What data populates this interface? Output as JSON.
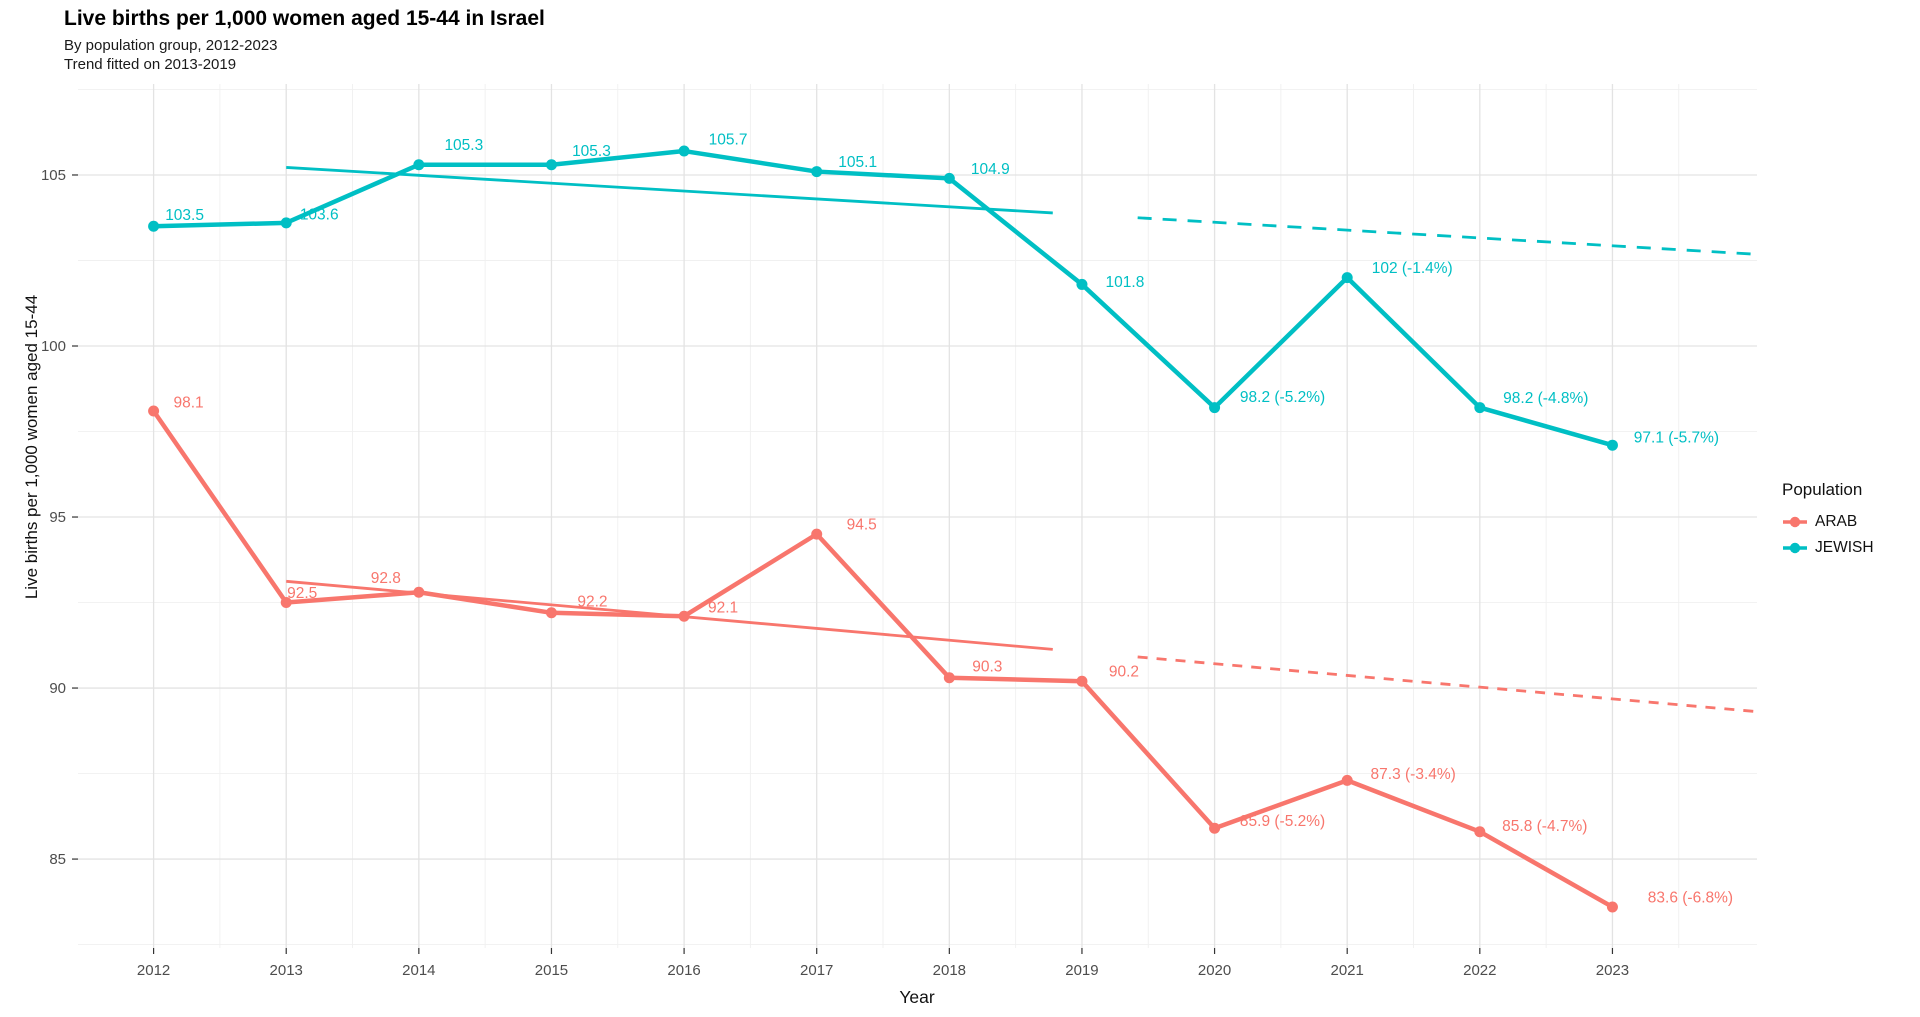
{
  "chart_data": {
    "type": "line",
    "title": "Live births per 1,000 women aged 15-44 in Israel",
    "subtitle_line1": "By population group, 2012-2023",
    "subtitle_line2": "Trend fitted on 2013-2019",
    "xlabel": "Year",
    "ylabel": "Live births per 1,000 women aged 15-44",
    "x": [
      2012,
      2013,
      2014,
      2015,
      2016,
      2017,
      2018,
      2019,
      2020,
      2021,
      2022,
      2023
    ],
    "series": [
      {
        "name": "ARAB",
        "color": "#F8766D",
        "values": [
          98.1,
          92.5,
          92.8,
          92.2,
          92.1,
          94.5,
          90.3,
          90.2,
          85.9,
          87.3,
          85.8,
          83.6
        ],
        "labels": [
          "98.1",
          "92.5",
          "92.8",
          "92.2",
          "92.1",
          "94.5",
          "90.3",
          "90.2",
          "85.9 (-5.2%)",
          "87.3 (-3.4%)",
          "85.8 (-4.7%)",
          "83.6 (-6.8%)"
        ],
        "label_offsets": [
          [
            35,
            -9
          ],
          [
            16,
            -10
          ],
          [
            -33,
            -15
          ],
          [
            41,
            -12
          ],
          [
            39,
            -9
          ],
          [
            45,
            -10
          ],
          [
            38,
            -12
          ],
          [
            42,
            -10
          ],
          [
            68,
            -8
          ],
          [
            66,
            -7
          ],
          [
            65,
            -6
          ],
          [
            78,
            -10
          ]
        ]
      },
      {
        "name": "JEWISH",
        "color": "#00BFC4",
        "values": [
          103.5,
          103.6,
          105.3,
          105.3,
          105.7,
          105.1,
          104.9,
          101.8,
          98.2,
          102,
          98.2,
          97.1
        ],
        "labels": [
          "103.5",
          "103.6",
          "105.3",
          "105.3",
          "105.7",
          "105.1",
          "104.9",
          "101.8",
          "98.2 (-5.2%)",
          "102 (-1.4%)",
          "98.2 (-4.8%)",
          "97.1 (-5.7%)"
        ],
        "label_offsets": [
          [
            31,
            -12
          ],
          [
            33,
            -9
          ],
          [
            45,
            -20
          ],
          [
            40,
            -14
          ],
          [
            44,
            -12
          ],
          [
            41,
            -10
          ],
          [
            41,
            -10
          ],
          [
            43,
            -3
          ],
          [
            68,
            -11
          ],
          [
            65,
            -10
          ],
          [
            66,
            -10
          ],
          [
            64,
            -8
          ]
        ]
      }
    ],
    "trend": {
      "fit_note": "Trend fitted on 2013-2019",
      "series": [
        {
          "name": "ARAB",
          "color": "#F8766D",
          "solid": {
            "x1": 2013,
            "v1": 93.12,
            "x2": 2018.78,
            "v2": 91.13
          },
          "dashed": {
            "x1": 2019.42,
            "v1": 90.91,
            "x2": 2024.09,
            "v2": 89.31
          }
        },
        {
          "name": "JEWISH",
          "color": "#00BFC4",
          "solid": {
            "x1": 2013,
            "v1": 105.22,
            "x2": 2018.78,
            "v2": 103.89
          },
          "dashed": {
            "x1": 2019.42,
            "v1": 103.75,
            "x2": 2024.09,
            "v2": 102.68
          }
        }
      ]
    },
    "xticks": [
      2012,
      2013,
      2014,
      2015,
      2016,
      2017,
      2018,
      2019,
      2020,
      2021,
      2022,
      2023
    ],
    "yticks": [
      85,
      90,
      95,
      100,
      105
    ],
    "xlim": [
      2011.43,
      2024.09
    ],
    "ylim": [
      82.4,
      107.66
    ],
    "grid": "on",
    "legend": {
      "title": "Population",
      "position": "right",
      "entries": [
        {
          "label": "ARAB",
          "color": "#F8766D"
        },
        {
          "label": "JEWISH",
          "color": "#00BFC4"
        }
      ]
    }
  }
}
